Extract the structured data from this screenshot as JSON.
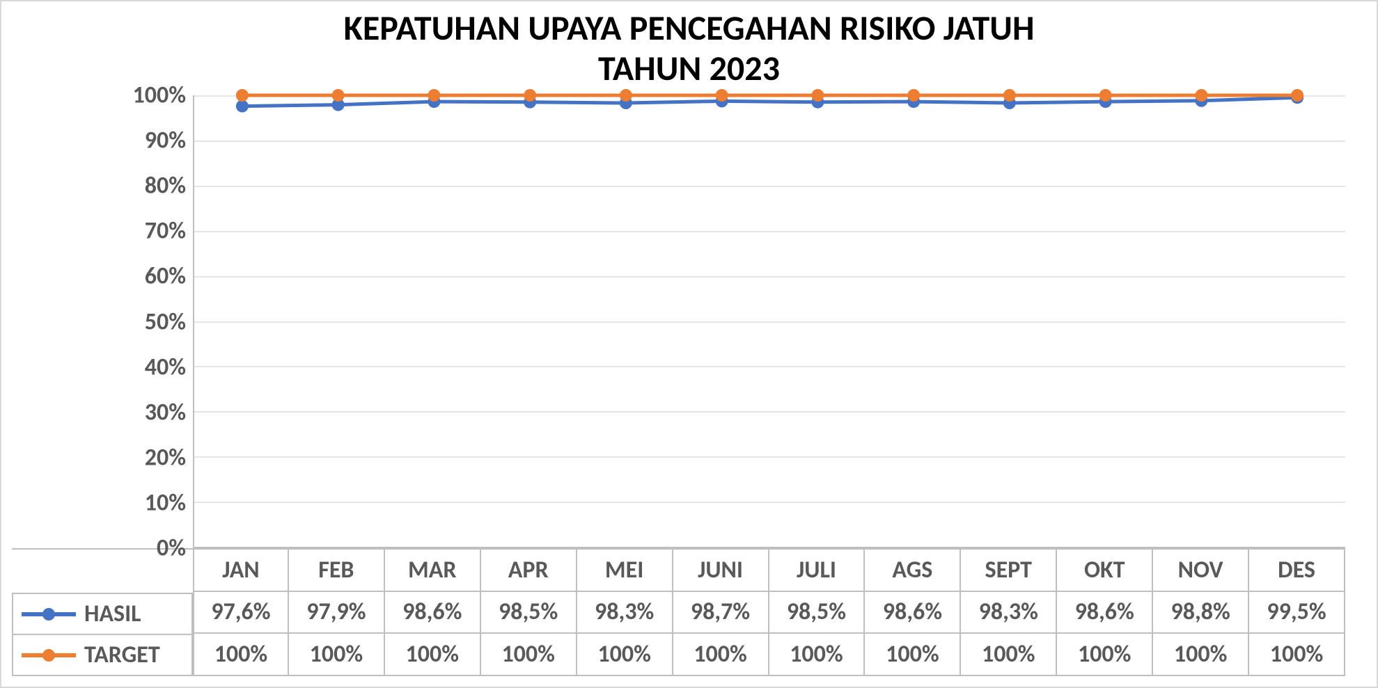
{
  "chart": {
    "type": "line",
    "title_line1": "KEPATUHAN UPAYA PENCEGAHAN RISIKO JATUH",
    "title_line2": "TAHUN 2023",
    "title_fontsize": 50,
    "title_color": "#000000",
    "background_color": "#ffffff",
    "border_color": "#d9d9d9",
    "axis_color": "#bfbfbf",
    "grid_color": "#e6e6e6",
    "tick_font_color": "#595959",
    "tick_fontsize": 34,
    "tick_fontweight": "700",
    "y_axis": {
      "min": 0,
      "max": 100,
      "step": 10,
      "ticks": [
        "0%",
        "10%",
        "20%",
        "30%",
        "40%",
        "50%",
        "60%",
        "70%",
        "80%",
        "90%",
        "100%"
      ]
    },
    "categories": [
      "JAN",
      "FEB",
      "MAR",
      "APR",
      "MEI",
      "JUNI",
      "JULI",
      "AGS",
      "SEPT",
      "OKT",
      "NOV",
      "DES"
    ],
    "line_width": 5,
    "marker_radius": 9,
    "series": [
      {
        "name": "HASIL",
        "color": "#4472c4",
        "values": [
          97.6,
          97.9,
          98.6,
          98.5,
          98.3,
          98.7,
          98.5,
          98.6,
          98.3,
          98.6,
          98.8,
          99.5
        ],
        "labels": [
          "97,6%",
          "97,9%",
          "98,6%",
          "98,5%",
          "98,3%",
          "98,7%",
          "98,5%",
          "98,6%",
          "98,3%",
          "98,6%",
          "98,8%",
          "99,5%"
        ]
      },
      {
        "name": "TARGET",
        "color": "#ed7d31",
        "values": [
          100,
          100,
          100,
          100,
          100,
          100,
          100,
          100,
          100,
          100,
          100,
          100
        ],
        "labels": [
          "100%",
          "100%",
          "100%",
          "100%",
          "100%",
          "100%",
          "100%",
          "100%",
          "100%",
          "100%",
          "100%",
          "100%"
        ]
      }
    ]
  }
}
